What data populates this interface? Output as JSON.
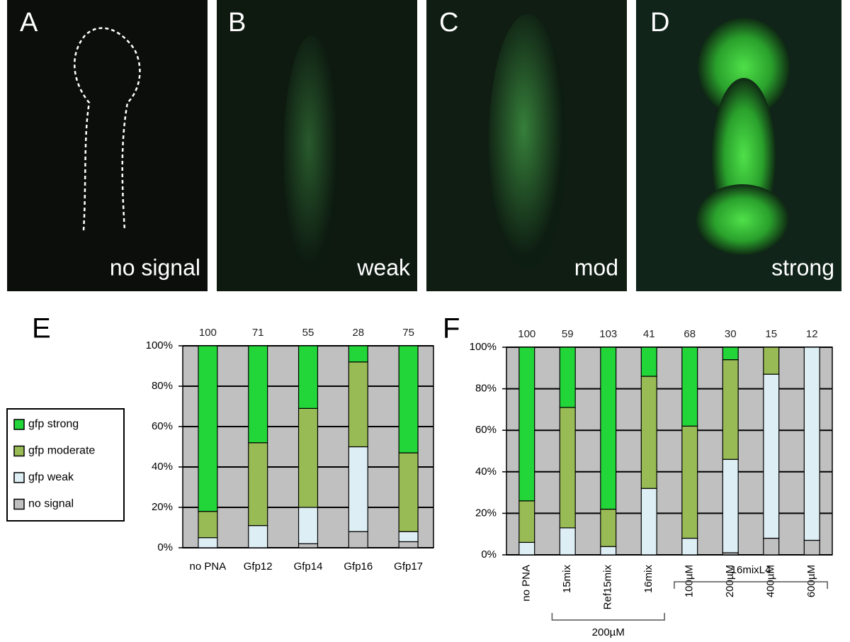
{
  "image_panels": [
    {
      "letter": "A",
      "caption": "no signal"
    },
    {
      "letter": "B",
      "caption": "weak"
    },
    {
      "letter": "C",
      "caption": "mod"
    },
    {
      "letter": "D",
      "caption": "strong"
    }
  ],
  "chart_data": [
    {
      "type": "bar",
      "stacked": true,
      "panel_label": "E",
      "categories": [
        "no PNA",
        "Gfp12",
        "Gfp14",
        "Gfp16",
        "Gfp17"
      ],
      "counts": [
        100,
        71,
        55,
        28,
        75
      ],
      "series": [
        {
          "name": "no signal",
          "color": "#c0c0c0",
          "values": [
            0,
            0,
            2,
            8,
            3
          ]
        },
        {
          "name": "gfp weak",
          "color": "#ddeef5",
          "values": [
            5,
            11,
            18,
            42,
            5
          ]
        },
        {
          "name": "gfp moderate",
          "color": "#99bb55",
          "values": [
            13,
            41,
            49,
            42,
            39
          ]
        },
        {
          "name": "gfp strong",
          "color": "#22d63a",
          "values": [
            82,
            48,
            31,
            8,
            53
          ]
        }
      ],
      "ylim": [
        0,
        100
      ],
      "yticks": [
        {
          "value": 0,
          "label": "0%"
        },
        {
          "value": 20,
          "label": "20%"
        },
        {
          "value": 40,
          "label": "40%"
        },
        {
          "value": 60,
          "label": "60%"
        },
        {
          "value": 80,
          "label": "80%"
        },
        {
          "value": 100,
          "label": "100%"
        }
      ],
      "grid": true,
      "legend": "left"
    },
    {
      "type": "bar",
      "stacked": true,
      "panel_label": "F",
      "categories": [
        "no PNA",
        "15mix",
        "Ref15mix",
        "16mix",
        "100µM",
        "200µM",
        "400µM",
        "600µM"
      ],
      "counts": [
        100,
        59,
        103,
        41,
        68,
        30,
        15,
        12
      ],
      "groups": [
        {
          "label": "200µM"
        },
        {
          "label": "16mixL4"
        }
      ],
      "series": [
        {
          "color": "#c0c0c0",
          "values": [
            0,
            0,
            0,
            0,
            0,
            1,
            8,
            7
          ]
        },
        {
          "color": "#ddeef5",
          "values": [
            6,
            13,
            4,
            32,
            8,
            45,
            79,
            93
          ]
        },
        {
          "color": "#99bb55",
          "values": [
            20,
            58,
            18,
            54,
            54,
            48,
            13,
            0
          ]
        },
        {
          "color": "#22d63a",
          "values": [
            74,
            29,
            78,
            14,
            38,
            6,
            0,
            0
          ]
        }
      ],
      "ylim": [
        0,
        100
      ],
      "yticks": [
        {
          "value": 0,
          "label": "0%"
        },
        {
          "value": 20,
          "label": "20%"
        },
        {
          "value": 40,
          "label": "40%"
        },
        {
          "value": 60,
          "label": "60%"
        },
        {
          "value": 80,
          "label": "80%"
        },
        {
          "value": 100,
          "label": "100%"
        }
      ],
      "grid": true
    }
  ]
}
